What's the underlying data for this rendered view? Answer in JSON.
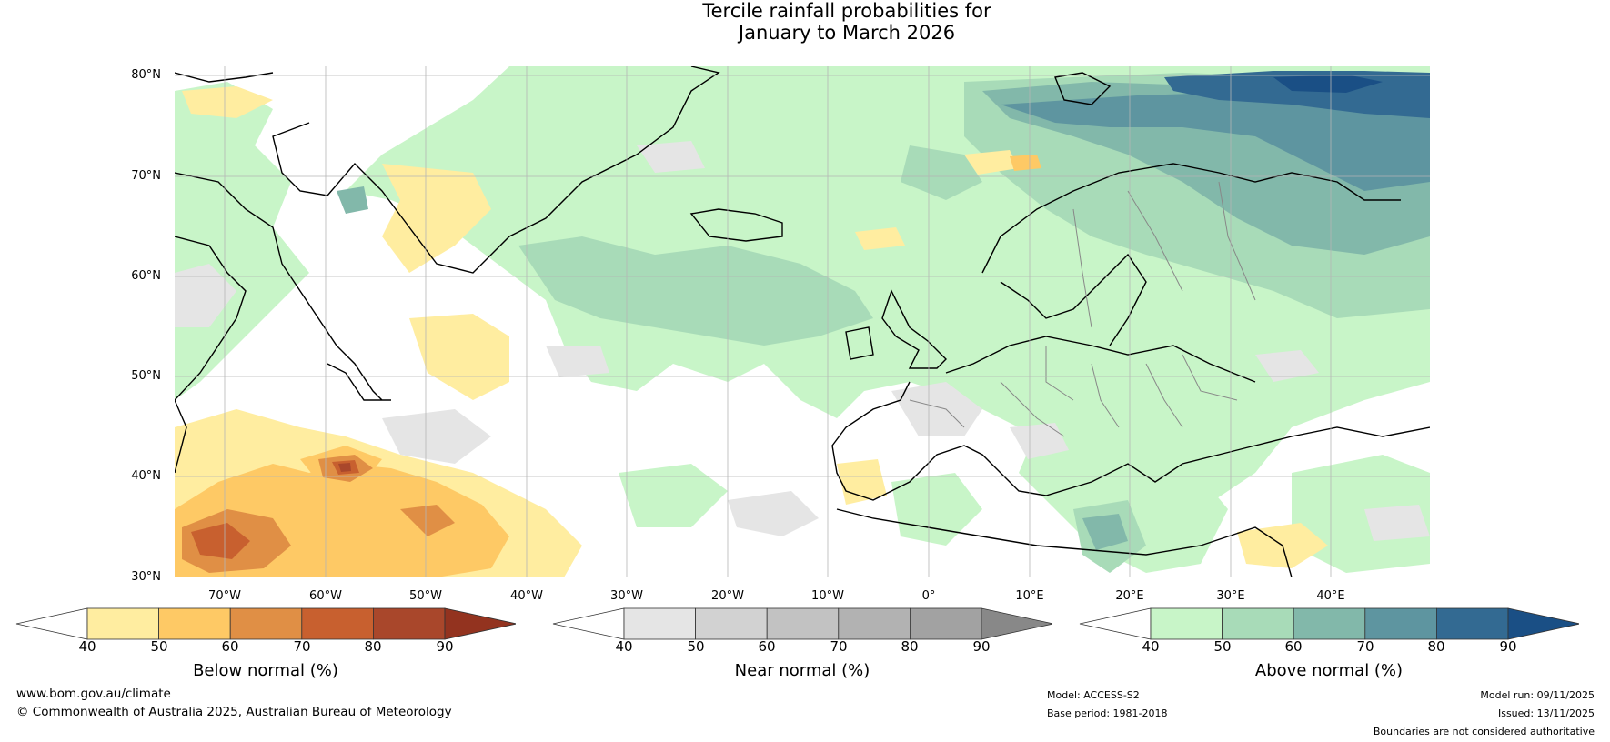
{
  "title": {
    "line1": "Tercile rainfall probabilities for",
    "line2": "January to March 2026"
  },
  "lat_labels": [
    "80°N",
    "70°N",
    "60°N",
    "50°N",
    "40°N",
    "30°N"
  ],
  "lon_labels": [
    "70°W",
    "60°W",
    "50°W",
    "40°W",
    "30°W",
    "20°W",
    "10°W",
    "0°",
    "10°E",
    "20°E",
    "30°E",
    "40°E"
  ],
  "colorbars": [
    {
      "title": "Below normal (%)",
      "ticks": [
        "40",
        "50",
        "60",
        "70",
        "80",
        "90"
      ],
      "colors": [
        "#ffffff",
        "#ffeda0",
        "#fec965",
        "#e08f45",
        "#c8602f",
        "#a9472b",
        "#93331f"
      ]
    },
    {
      "title": "Near normal (%)",
      "ticks": [
        "40",
        "50",
        "60",
        "70",
        "80",
        "90"
      ],
      "colors": [
        "#ffffff",
        "#e5e5e5",
        "#d2d2d2",
        "#c2c2c2",
        "#b2b2b2",
        "#a2a2a2",
        "#888888"
      ]
    },
    {
      "title": "Above normal (%)",
      "ticks": [
        "40",
        "50",
        "60",
        "70",
        "80",
        "90"
      ],
      "colors": [
        "#ffffff",
        "#c8f5c8",
        "#a8dbb8",
        "#82b8aa",
        "#5e95a0",
        "#336a92",
        "#1a4f85"
      ]
    }
  ],
  "footer": {
    "website": "www.bom.gov.au/climate",
    "copyright": "© Commonwealth of Australia 2025, Australian Bureau of Meteorology",
    "model": "Model: ACCESS-S2",
    "base_period": "Base period: 1981-2018",
    "model_run": "Model run: 09/11/2025",
    "issued": "Issued: 13/11/2025",
    "disclaimer": "Boundaries are not considered authoritative"
  }
}
